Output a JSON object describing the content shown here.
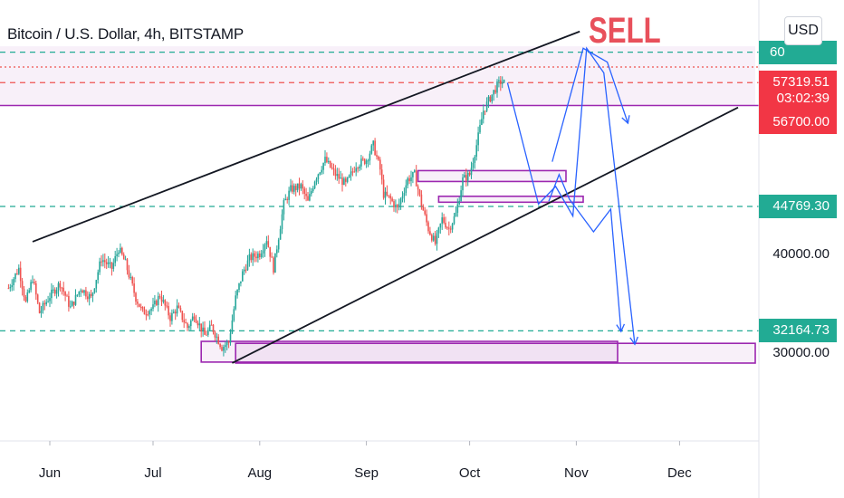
{
  "header": {
    "title": "Bitcoin / U.S. Dollar, 4h, BITSTAMP"
  },
  "annotation": {
    "sell_text": "SELL"
  },
  "currency": {
    "label": "USD"
  },
  "price_axis": {
    "ticks": [
      {
        "value": 40000,
        "label": "40000.00"
      },
      {
        "value": 30000,
        "label": "30000.00"
      }
    ]
  },
  "price_tags": [
    {
      "id": "top-level",
      "label": "60",
      "value": 60400,
      "color": "teal"
    },
    {
      "id": "current-price",
      "label": "57319.51",
      "value": 57319.51,
      "color": "red"
    },
    {
      "id": "countdown",
      "label": "03:02:39",
      "value": 55700,
      "color": "red"
    },
    {
      "id": "level-56700",
      "label": "56700.00",
      "value": 53300,
      "color": "red"
    },
    {
      "id": "level-44769",
      "label": "44769.30",
      "value": 44769.3,
      "color": "teal"
    },
    {
      "id": "level-32164",
      "label": "32164.73",
      "value": 32164.73,
      "color": "teal"
    }
  ],
  "time_axis": {
    "ticks": [
      {
        "label": "Jun",
        "day": 0
      },
      {
        "label": "Jul",
        "day": 30
      },
      {
        "label": "Aug",
        "day": 61
      },
      {
        "label": "Sep",
        "day": 92
      },
      {
        "label": "Oct",
        "day": 122
      },
      {
        "label": "Nov",
        "day": 153
      },
      {
        "label": "Dec",
        "day": 183
      }
    ]
  },
  "colors": {
    "bull": "#26a69a",
    "bear": "#ef5350",
    "teal_level": "#22ab94",
    "purple": "#9c27b0",
    "zone_fill": "rgba(156,39,176,0.07)",
    "projection": "#2962ff",
    "trend": "#131722"
  },
  "chart_data": {
    "type": "candlestick",
    "title": "Bitcoin / U.S. Dollar, 4h, BITSTAMP",
    "x_unit": "days since Jun 1",
    "y_unit": "USD",
    "ylim": [
      27500,
      63500
    ],
    "price_path": [
      [
        -12,
        36500
      ],
      [
        -9,
        38500
      ],
      [
        -7,
        35000
      ],
      [
        -5,
        37500
      ],
      [
        -3,
        34000
      ],
      [
        0,
        35700
      ],
      [
        3,
        37000
      ],
      [
        6,
        34500
      ],
      [
        9,
        36500
      ],
      [
        12,
        35500
      ],
      [
        15,
        39500
      ],
      [
        18,
        38500
      ],
      [
        20,
        40500
      ],
      [
        22,
        39000
      ],
      [
        25,
        35500
      ],
      [
        27,
        34000
      ],
      [
        30,
        34500
      ],
      [
        32,
        35800
      ],
      [
        35,
        33500
      ],
      [
        37,
        34500
      ],
      [
        40,
        32500
      ],
      [
        42,
        33800
      ],
      [
        45,
        31700
      ],
      [
        47,
        32600
      ],
      [
        50,
        30500
      ],
      [
        52,
        31000
      ],
      [
        54,
        35500
      ],
      [
        56,
        38000
      ],
      [
        58,
        39500
      ],
      [
        61,
        40000
      ],
      [
        63,
        41500
      ],
      [
        65,
        38500
      ],
      [
        68,
        45000
      ],
      [
        70,
        46500
      ],
      [
        73,
        46800
      ],
      [
        75,
        45200
      ],
      [
        77,
        47500
      ],
      [
        80,
        49500
      ],
      [
        83,
        48000
      ],
      [
        86,
        47000
      ],
      [
        89,
        49000
      ],
      [
        92,
        49500
      ],
      [
        94,
        51000
      ],
      [
        96,
        48500
      ],
      [
        97,
        46000
      ],
      [
        99,
        45500
      ],
      [
        101,
        44500
      ],
      [
        104,
        47500
      ],
      [
        106,
        48000
      ],
      [
        108,
        45000
      ],
      [
        110,
        42500
      ],
      [
        112,
        41000
      ],
      [
        114,
        43500
      ],
      [
        116,
        42500
      ],
      [
        118,
        44000
      ],
      [
        120,
        47500
      ],
      [
        122,
        48000
      ],
      [
        124,
        51000
      ],
      [
        126,
        54500
      ],
      [
        128,
        55800
      ],
      [
        130,
        57000
      ],
      [
        131,
        57400
      ],
      [
        132,
        57300
      ]
    ],
    "series": [
      {
        "kind": "trendline",
        "points": [
          [
            -5,
            41200
          ],
          [
            154,
            62500
          ]
        ]
      },
      {
        "kind": "trendline",
        "points": [
          [
            53,
            28900
          ],
          [
            200,
            54800
          ]
        ]
      },
      {
        "kind": "projection",
        "points": [
          [
            133,
            57300
          ],
          [
            142,
            45000
          ],
          [
            147,
            46800
          ],
          [
            152,
            43800
          ],
          [
            156,
            60800
          ],
          [
            161,
            58300
          ],
          [
            170,
            30800
          ]
        ]
      },
      {
        "kind": "projection",
        "points": [
          [
            146,
            49300
          ],
          [
            155,
            60800
          ],
          [
            162,
            59400
          ],
          [
            168,
            53200
          ]
        ]
      },
      {
        "kind": "projection",
        "points": [
          [
            145,
            45300
          ],
          [
            148,
            48000
          ],
          [
            151,
            45500
          ],
          [
            158,
            42200
          ],
          [
            163,
            44500
          ],
          [
            166,
            32100
          ]
        ]
      }
    ],
    "levels": [
      {
        "price": 60400,
        "style": "dashed",
        "color": "teal"
      },
      {
        "price": 58900,
        "style": "dotted",
        "color": "red"
      },
      {
        "price": 57319.51,
        "style": "dashed",
        "color": "red"
      },
      {
        "price": 55000,
        "style": "solid",
        "color": "purple"
      },
      {
        "price": 44769.3,
        "style": "dashed",
        "color": "teal"
      },
      {
        "price": 32164.73,
        "style": "dashed",
        "color": "teal"
      }
    ],
    "zones": [
      {
        "from": -15,
        "to": 205,
        "low": 55000,
        "high": 61000
      },
      {
        "from": 44,
        "to": 165,
        "low": 29000,
        "high": 31100
      },
      {
        "from": 54,
        "to": 205,
        "low": 28900,
        "high": 30900
      },
      {
        "from": 107,
        "to": 150,
        "low": 47300,
        "high": 48400
      },
      {
        "from": 113,
        "to": 155,
        "low": 45200,
        "high": 45800
      }
    ]
  }
}
